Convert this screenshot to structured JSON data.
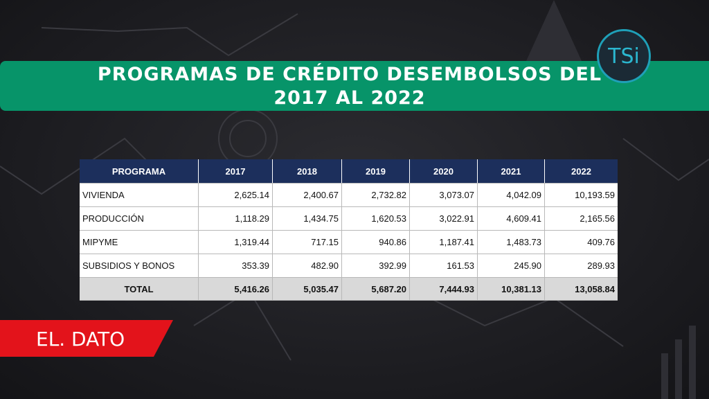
{
  "header": {
    "title_line1": "PROGRAMAS DE CRÉDITO DESEMBOLSOS DEL",
    "title_line2": "2017 AL 2022",
    "logo": "TSi"
  },
  "table": {
    "columns": [
      "PROGRAMA",
      "2017",
      "2018",
      "2019",
      "2020",
      "2021",
      "2022"
    ],
    "rows": [
      [
        "VIVIENDA",
        "2,625.14",
        "2,400.67",
        "2,732.82",
        "3,073.07",
        "4,042.09",
        "10,193.59"
      ],
      [
        "PRODUCCIÓN",
        "1,118.29",
        "1,434.75",
        "1,620.53",
        "3,022.91",
        "4,609.41",
        "2,165.56"
      ],
      [
        "MIPYME",
        "1,319.44",
        "717.15",
        "940.86",
        "1,187.41",
        "1,483.73",
        "409.76"
      ],
      [
        "SUBSIDIOS Y BONOS",
        "353.39",
        "482.90",
        "392.99",
        "161.53",
        "245.90",
        "289.93"
      ]
    ],
    "total": [
      "TOTAL",
      "5,416.26",
      "5,035.47",
      "5,687.20",
      "7,444.93",
      "10,381.13",
      "13,058.84"
    ]
  },
  "badge": {
    "part1": "EL.",
    "part2": "DATO"
  }
}
